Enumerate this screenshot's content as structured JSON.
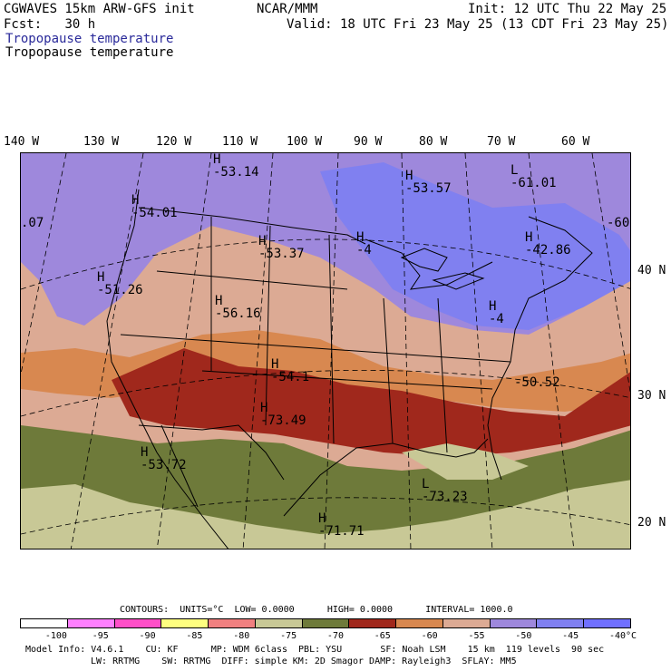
{
  "header": {
    "model": "CGWAVES 15km ARW-GFS init",
    "fcst_label": "Fcst:",
    "fcst_value": "30 h",
    "org": "NCAR/MMM",
    "init": "Init: 12 UTC Thu 22 May 25",
    "valid": "Valid: 18 UTC Fri 23 May 25 (13 CDT Fri 23 May 25)",
    "field_title_colored": "Tropopause temperature",
    "field_title_contour": "Tropopause temperature"
  },
  "longitude_labels": [
    "140 W",
    "130 W",
    "120 W",
    "110 W",
    "100 W",
    "90 W",
    "80 W",
    "70 W",
    "60 W"
  ],
  "latitude_labels": [
    "40 N",
    "30 N",
    "20 N"
  ],
  "map_labels": [
    {
      "symbol": "H",
      "value": "-53.14"
    },
    {
      "symbol": "H",
      "value": "-53.57"
    },
    {
      "symbol": "L",
      "value": "-61.01"
    },
    {
      "symbol": "H",
      "value": "-54.01"
    },
    {
      "symbol": "",
      "value": ".07"
    },
    {
      "symbol": "",
      "value": "-60"
    },
    {
      "symbol": "H",
      "value": "-53.37"
    },
    {
      "symbol": "H",
      "value": "-4"
    },
    {
      "symbol": "H",
      "value": "-42.86"
    },
    {
      "symbol": "H",
      "value": "-51.26"
    },
    {
      "symbol": "H",
      "value": "-56.16"
    },
    {
      "symbol": "H",
      "value": "-4"
    },
    {
      "symbol": "H",
      "value": "-54.1"
    },
    {
      "symbol": "",
      "value": "-50.52"
    },
    {
      "symbol": "H",
      "value": "-73.49"
    },
    {
      "symbol": "H",
      "value": "-53.72"
    },
    {
      "symbol": "L",
      "value": "-73.23"
    },
    {
      "symbol": "H",
      "value": "-71.71"
    }
  ],
  "contours_info": {
    "contours_label": "CONTOURS:",
    "units": "UNITS=°C",
    "low": "LOW= 0.0000",
    "high": "HIGH= 0.0000",
    "interval": "INTERVAL= 1000.0"
  },
  "colorbar": {
    "colors": [
      "#ffffff",
      "#ff80ff",
      "#ff4fc8",
      "#ffff80",
      "#f08080",
      "#c8c896",
      "#6e7a3a",
      "#a0281c",
      "#d88850",
      "#dcaa94",
      "#9e88dc",
      "#8080f0",
      "#7070ff"
    ],
    "tick_labels": [
      "-100",
      "-95",
      "-90",
      "-85",
      "-80",
      "-75",
      "-70",
      "-65",
      "-60",
      "-55",
      "-50",
      "-45",
      "-40"
    ],
    "unit": "°C"
  },
  "footer": {
    "line1": "Model Info: V4.6.1    CU: KF      MP: WDM 6class  PBL: YSU       SF: Noah LSM    15 km  119 levels  90 sec",
    "line2": "LW: RRTMG    SW: RRTMG  DIFF: simple KM: 2D Smagor DAMP: Rayleigh3  SFLAY: MM5"
  }
}
